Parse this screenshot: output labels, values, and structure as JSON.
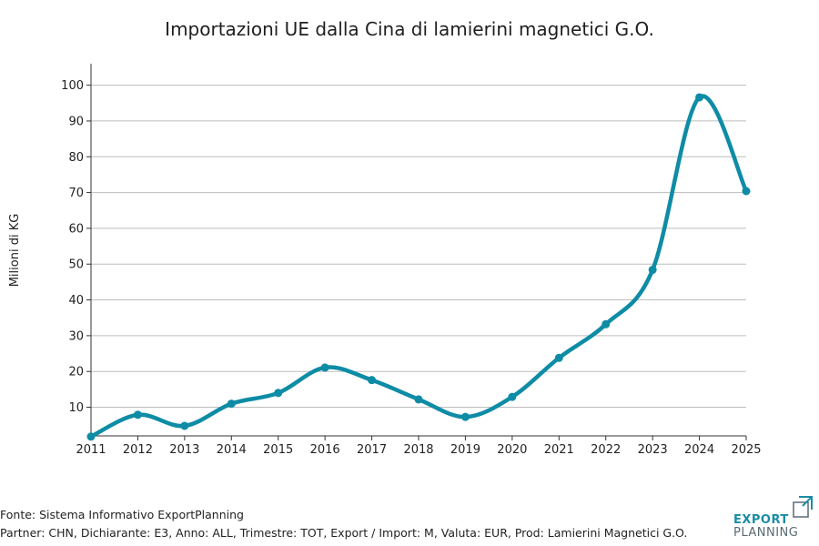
{
  "chart_data": {
    "type": "line",
    "title": "Importazioni UE dalla Cina di lamierini magnetici G.O.",
    "xlabel": "",
    "ylabel": "Milioni di KG",
    "x": [
      2011,
      2012,
      2013,
      2014,
      2015,
      2016,
      2017,
      2018,
      2019,
      2020,
      2021,
      2022,
      2023,
      2024,
      2025
    ],
    "series": [
      {
        "values": [
          1.8,
          7.9,
          4.8,
          11.0,
          14.0,
          21.1,
          17.6,
          12.2,
          7.3,
          12.9,
          23.8,
          33.2,
          48.4,
          96.6,
          70.4
        ],
        "color": "#0e8ca6"
      }
    ],
    "xlim": [
      2011,
      2025
    ],
    "ylim": [
      2,
      106
    ],
    "yticks": [
      10,
      20,
      30,
      40,
      50,
      60,
      70,
      80,
      90,
      100
    ],
    "grid": "horizontal",
    "legend": "none"
  },
  "footer": {
    "source": "Fonte: Sistema Informativo ExportPlanning",
    "details": "Partner: CHN, Dichiarante: E3, Anno: ALL, Trimestre: TOT, Export / Import: M, Valuta: EUR, Prod: Lamierini Magnetici G.O."
  },
  "brand": {
    "line1": "EXPORT",
    "line2": "PLANNING",
    "icon": "export-planning-logo-icon",
    "color_primary": "#1a8ca5",
    "color_secondary": "#5a6a73"
  }
}
